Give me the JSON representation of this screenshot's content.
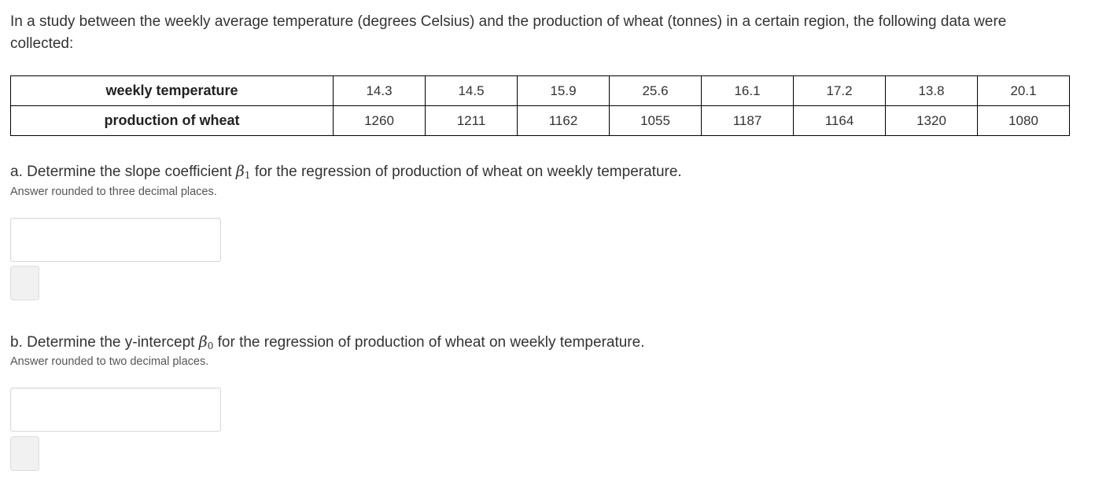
{
  "intro_text": "In a study between the weekly average temperature (degrees Celsius) and the production of wheat (tonnes) in a certain region, the following data were collected:",
  "table": {
    "rows": [
      {
        "label": "weekly temperature",
        "values": [
          "14.3",
          "14.5",
          "15.9",
          "25.6",
          "16.1",
          "17.2",
          "13.8",
          "20.1"
        ]
      },
      {
        "label": "production of wheat",
        "values": [
          "1260",
          "1211",
          "1162",
          "1055",
          "1187",
          "1164",
          "1320",
          "1080"
        ]
      }
    ]
  },
  "question_a": {
    "prefix": "a. Determine the slope coefficient ",
    "symbol": "β",
    "subscript": "1",
    "suffix": " for the regression of production of wheat on weekly temperature.",
    "hint": "Answer rounded to three decimal places.",
    "answer_value": ""
  },
  "question_b": {
    "prefix": "b. Determine the y-intercept ",
    "symbol": "β",
    "subscript": "0",
    "suffix": " for the regression of production of wheat on weekly temperature.",
    "hint": "Answer rounded to two decimal places.",
    "answer_value": ""
  }
}
